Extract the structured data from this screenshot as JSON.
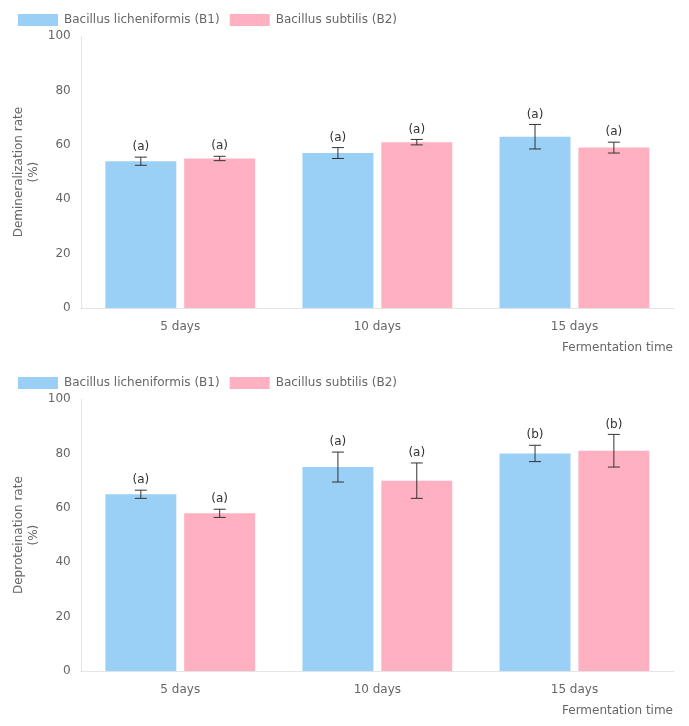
{
  "chart_data": [
    {
      "type": "bar",
      "ylabel": "Demineralization rate\n(%)",
      "xlabel": "Fermentation time",
      "categories": [
        "5 days",
        "10 days",
        "15 days"
      ],
      "series": [
        {
          "name": "Bacillus licheniformis (B1)",
          "values": [
            54.0,
            57.0,
            63.0
          ],
          "errors": [
            1.5,
            2.0,
            4.5
          ],
          "labels": [
            "(a)",
            "(a)",
            "(a)"
          ]
        },
        {
          "name": "Bacillus subtilis (B2)",
          "values": [
            55.0,
            61.0,
            59.0
          ],
          "errors": [
            0.8,
            1.0,
            2.0
          ],
          "labels": [
            "(a)",
            "(a)",
            "(a)"
          ]
        }
      ],
      "ylim": [
        0,
        100
      ],
      "yticks": [
        0,
        20,
        40,
        60,
        80,
        100
      ],
      "grid": false,
      "legend": "upper left"
    },
    {
      "type": "bar",
      "ylabel": "Deproteination rate\n(%)",
      "xlabel": "Fermentation time",
      "categories": [
        "5 days",
        "10 days",
        "15 days"
      ],
      "series": [
        {
          "name": "Bacillus licheniformis (B1)",
          "values": [
            65.0,
            75.0,
            80.0
          ],
          "errors": [
            1.5,
            5.5,
            3.0
          ],
          "labels": [
            "(a)",
            "(a)",
            "(b)"
          ]
        },
        {
          "name": "Bacillus subtilis (B2)",
          "values": [
            58.0,
            70.0,
            81.0
          ],
          "errors": [
            1.5,
            6.5,
            6.0
          ],
          "labels": [
            "(a)",
            "(a)",
            "(b)"
          ]
        }
      ],
      "ylim": [
        0,
        100
      ],
      "yticks": [
        0,
        20,
        40,
        60,
        80,
        100
      ],
      "grid": false,
      "legend": "upper left"
    }
  ]
}
